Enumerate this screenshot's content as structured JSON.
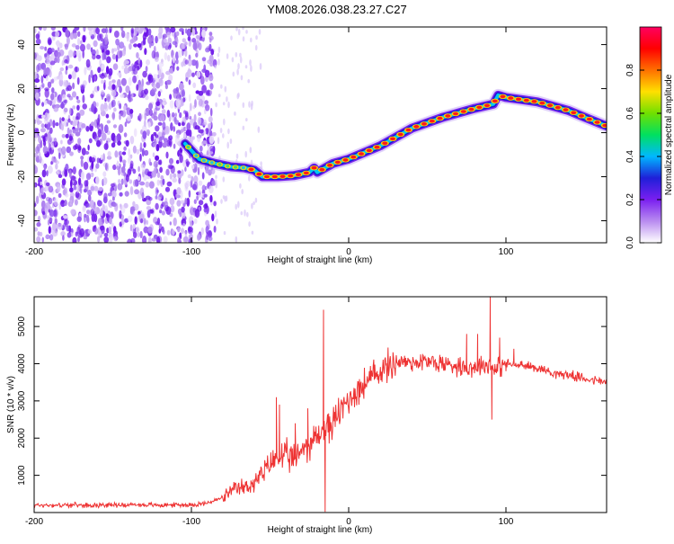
{
  "page": {
    "title": "YM08.2026.038.23.27.C27"
  },
  "chart_data": [
    {
      "type": "heatmap",
      "title": "YM08.2026.038.23.27.C27",
      "xlabel": "Height of straight line (km)",
      "ylabel": "Frequency (Hz)",
      "xlim": [
        -200,
        164
      ],
      "ylim": [
        -50,
        48
      ],
      "xticks": [
        "-200",
        "-100",
        "0",
        "100"
      ],
      "yticks": [
        "40",
        "20",
        "0",
        "-20",
        "-40"
      ],
      "colorbar": {
        "label": "Normalized spectral amplitude",
        "range": [
          0,
          1
        ],
        "ticks": [
          "0.0",
          "0.2",
          "0.4",
          "0.6",
          "0.8"
        ],
        "stops": [
          "#ffffff",
          "#b98cf0",
          "#7a1ff0",
          "#1f1fd8",
          "#00b8ff",
          "#00e060",
          "#70e000",
          "#ffe000",
          "#ff7000",
          "#ff0000",
          "#ff0060"
        ]
      },
      "noise_region": {
        "x_from": -200,
        "x_to": -85
      },
      "track": {
        "x": [
          -104,
          -95,
          -85,
          -75,
          -66,
          -60,
          -55,
          -45,
          -35,
          -25,
          -22,
          -20,
          -10,
          0,
          20,
          40,
          60,
          80,
          92,
          95,
          100,
          110,
          120,
          130,
          140,
          150,
          164
        ],
        "freq": [
          -5,
          -12,
          -14,
          -15.5,
          -16,
          -17,
          -20,
          -20,
          -19.5,
          -18,
          -16,
          -18,
          -14,
          -12,
          -6,
          2,
          7,
          11,
          13,
          17,
          16,
          15,
          14,
          12,
          10,
          7,
          3
        ]
      }
    },
    {
      "type": "line",
      "xlabel": "Height of straight line (km)",
      "ylabel": "SNR (10 * v/v)",
      "xlim": [
        -200,
        164
      ],
      "ylim": [
        0,
        5800
      ],
      "xticks": [
        "-200",
        "-100",
        "0",
        "100"
      ],
      "yticks": [
        "1000",
        "2000",
        "3000",
        "4000",
        "5000"
      ],
      "series": [
        {
          "color": "#ee3333",
          "x": [
            -200,
            -180,
            -160,
            -140,
            -120,
            -100,
            -90,
            -80,
            -75,
            -70,
            -65,
            -60,
            -55,
            -50,
            -45,
            -40,
            -35,
            -30,
            -25,
            -20,
            -15,
            -10,
            -5,
            0,
            10,
            20,
            30,
            40,
            50,
            60,
            70,
            80,
            85,
            90,
            95,
            100,
            110,
            120,
            130,
            140,
            150,
            164
          ],
          "value": [
            200,
            200,
            200,
            210,
            200,
            210,
            250,
            400,
            550,
            650,
            700,
            800,
            1000,
            1300,
            1500,
            1500,
            1400,
            1700,
            1850,
            2050,
            2250,
            2400,
            2750,
            3050,
            3450,
            3800,
            4050,
            4050,
            4050,
            4000,
            3950,
            3900,
            4000,
            3950,
            3900,
            4000,
            3950,
            3900,
            3750,
            3700,
            3600,
            3500
          ],
          "spikes": [
            {
              "x": -46,
              "value": 3100
            },
            {
              "x": -44,
              "value": 2900
            },
            {
              "x": -34,
              "value": 2400
            },
            {
              "x": -26,
              "value": 2800
            },
            {
              "x": -16,
              "value": 5450
            },
            {
              "x": -15,
              "value": 20
            },
            {
              "x": 75,
              "value": 4800
            },
            {
              "x": 82,
              "value": 4800
            },
            {
              "x": 90,
              "value": 5800
            },
            {
              "x": 91,
              "value": 2500
            },
            {
              "x": 96,
              "value": 4700
            },
            {
              "x": 100,
              "value": 3800
            },
            {
              "x": 105,
              "value": 4400
            }
          ]
        }
      ]
    }
  ]
}
